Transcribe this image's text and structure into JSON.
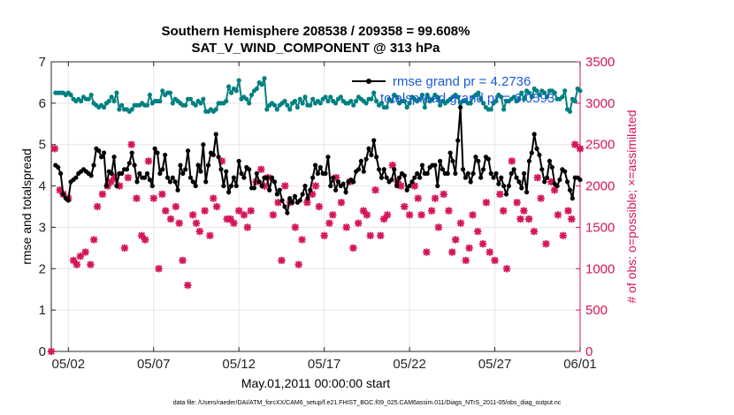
{
  "chart_data": {
    "type": "line",
    "title": "Southern Hemisphere 208538 / 209358 = 99.608%",
    "subtitle": "SAT_V_WIND_COMPONENT @ 313 hPa",
    "xlabel": "May.01,2011 00:00:00 start",
    "ylabel_left": "rmse and totalspread",
    "ylabel_right": "# of obs: o=possible; ×=assimilated",
    "footnote": "data file: /Users/raeder/DAI/ATM_forcXX/CAM6_setup/f.e21.FHIST_BGC.f09_025.CAM6assim.011/Diags_NTrS_2011-05/obs_diag_output.nc",
    "x_tick_labels": [
      "05/02",
      "05/07",
      "05/12",
      "05/17",
      "05/22",
      "05/27",
      "06/01"
    ],
    "x_tick_values": [
      2,
      7,
      12,
      17,
      22,
      27,
      32
    ],
    "xlim": [
      1,
      32
    ],
    "ylim_left": [
      0,
      7
    ],
    "y_ticks_left": [
      "0",
      "1",
      "2",
      "3",
      "4",
      "5",
      "6",
      "7"
    ],
    "ylim_right": [
      0,
      3500
    ],
    "y_ticks_right": [
      "0",
      "500",
      "1000",
      "1500",
      "2000",
      "2500",
      "3000",
      "3500"
    ],
    "grid": true,
    "legend_position": "top-right",
    "colors": {
      "rmse": "#000000",
      "spread": "#008080",
      "obs": "#d6145a"
    },
    "series": [
      {
        "name": "rmse grand pr = 4.2736",
        "axis": "left",
        "style": "line-dots",
        "values": [
          4.5,
          4.45,
          4.3,
          3.8,
          3.7,
          3.65,
          4.1,
          4.15,
          4.2,
          4.3,
          4.35,
          4.4,
          4.35,
          4.3,
          4.25,
          4.5,
          4.9,
          4.85,
          4.7,
          4.8,
          4.0,
          4.35,
          4.3,
          4.7,
          4.0,
          4.3,
          4.3,
          4.4,
          4.4,
          4.55,
          4.8,
          4.5,
          4.1,
          4.3,
          4.2,
          4.2,
          4.3,
          4.15,
          4.0,
          4.9,
          4.8,
          4.3,
          4.4,
          4.75,
          4.2,
          4.1,
          4.2,
          4.1,
          3.9,
          4.5,
          4.3,
          4.4,
          4.85,
          4.2,
          4.1,
          4.0,
          4.5,
          4.35,
          5.0,
          4.1,
          4.5,
          4.8,
          4.75,
          5.25,
          4.7,
          4.4,
          4.0,
          4.35,
          3.85,
          4.0,
          4.2,
          4.0,
          4.6,
          4.3,
          4.2,
          4.45,
          4.4,
          3.95,
          3.95,
          4.3,
          4.1,
          4.0,
          4.2,
          4.2,
          3.9,
          4.2,
          4.1,
          3.8,
          3.9,
          3.65,
          3.5,
          3.35,
          3.7,
          3.6,
          3.75,
          3.6,
          3.65,
          3.8,
          4.0,
          3.7,
          3.9,
          4.2,
          4.5,
          4.3,
          4.45,
          4.3,
          4.3,
          4.7,
          4.0,
          4.2,
          3.9,
          4.1,
          4.0,
          4.05,
          3.85,
          4.1,
          4.15,
          4.1,
          4.35,
          4.4,
          4.6,
          4.35,
          4.65,
          4.9,
          4.75,
          5.1,
          4.7,
          4.4,
          4.2,
          4.4,
          4.2,
          4.1,
          4.15,
          4.4,
          4.0,
          4.2,
          4.3,
          4.25,
          3.9,
          4.0,
          4.1,
          4.2,
          4.3,
          4.2,
          4.5,
          4.3,
          4.3,
          4.45,
          4.5,
          4.5,
          4.0,
          4.6,
          4.4,
          4.3,
          4.3,
          4.8,
          4.6,
          4.3,
          5.1,
          5.9,
          4.4,
          4.2,
          4.3,
          4.1,
          4.3,
          4.7,
          4.6,
          4.2,
          4.4,
          4.7,
          4.65,
          4.3,
          4.2,
          4.3,
          4.05,
          4.2,
          4.0,
          3.8,
          4.0,
          4.3,
          4.4,
          4.2,
          4.1,
          3.95,
          4.3,
          3.85,
          4.6,
          4.8,
          5.25,
          4.9,
          4.75,
          4.4,
          4.1,
          4.2,
          4.6,
          4.45,
          4.05,
          4.0,
          4.15,
          4.4,
          4.35,
          4.1,
          3.9,
          3.7,
          4.2,
          4.2,
          4.15
        ]
      },
      {
        "name": "totalspread grand pr = 6.0593",
        "axis": "left",
        "style": "line-dots",
        "values": [
          6.25,
          6.25,
          6.25,
          6.25,
          6.2,
          6.25,
          6.2,
          6.1,
          6.05,
          6.1,
          6.05,
          6.15,
          6.1,
          6.1,
          6.2,
          6.0,
          5.95,
          5.9,
          5.95,
          5.9,
          6.0,
          6.05,
          6.15,
          6.05,
          6.25,
          5.85,
          5.95,
          5.85,
          5.85,
          5.8,
          5.85,
          5.95,
          5.95,
          5.95,
          6.0,
          5.95,
          5.95,
          6.2,
          6.0,
          6.05,
          6.05,
          6.05,
          6.3,
          6.2,
          6.25,
          6.25,
          6.0,
          6.1,
          6.05,
          6.0,
          5.95,
          5.95,
          6.1,
          6.1,
          6.0,
          5.95,
          6.05,
          6.0,
          6.1,
          5.8,
          5.8,
          5.85,
          5.8,
          5.85,
          6.0,
          6.0,
          6.0,
          6.05,
          6.4,
          6.25,
          6.35,
          6.3,
          6.55,
          6.1,
          6.15,
          6.1,
          6.0,
          6.2,
          6.3,
          6.35,
          6.5,
          6.45,
          6.6,
          5.85,
          5.95,
          6.0,
          5.95,
          5.85,
          5.95,
          6.0,
          6.05,
          5.95,
          5.85,
          6.0,
          6.05,
          5.9,
          6.1,
          6.0,
          6.15,
          5.95,
          5.95,
          6.1,
          6.0,
          6.05,
          6.0,
          6.1,
          6.15,
          6.05,
          6.15,
          6.05,
          6.0,
          6.1,
          6.15,
          6.05,
          6.0,
          6.0,
          6.05,
          5.95,
          6.05,
          6.15,
          6.1,
          6.05,
          6.0,
          6.1,
          6.1,
          6.25,
          6.05,
          5.95,
          6.0,
          5.9,
          5.9,
          6.1,
          6.05,
          6.2,
          6.15,
          6.0,
          6.05,
          6.05,
          5.9,
          6.0,
          6.15,
          6.1,
          6.05,
          6.1,
          6.2,
          5.9,
          6.2,
          6.05,
          6.1,
          6.2,
          6.15,
          5.95,
          6.05,
          6.0,
          6.05,
          6.1,
          6.15,
          6.2,
          6.15,
          6.0,
          6.05,
          6.05,
          6.0,
          6.0,
          6.15,
          6.2,
          6.25,
          6.1,
          6.0,
          5.9,
          5.85,
          5.85,
          6.0,
          6.05,
          6.2,
          6.15,
          5.85,
          6.05,
          6.05,
          6.1,
          6.15,
          6.05,
          6.1,
          6.25,
          6.1,
          6.3,
          6.25,
          6.15,
          6.35,
          6.3,
          6.2,
          6.3,
          6.25,
          6.15,
          6.3,
          6.3,
          6.25,
          6.1,
          6.1,
          6.15,
          6.3,
          5.85,
          5.8,
          6.1,
          6.05,
          6.35,
          6.3
        ]
      },
      {
        "name": "obs assimilated",
        "axis": "right",
        "style": "markers",
        "x": [
          1.0,
          1.2,
          1.5,
          1.7,
          2.0,
          2.3,
          2.5,
          2.7,
          3.0,
          3.3,
          3.5,
          3.7,
          4.0,
          4.3,
          4.5,
          4.7,
          5.0,
          5.3,
          5.5,
          5.7,
          6.0,
          6.3,
          6.5,
          6.7,
          7.0,
          7.3,
          7.5,
          7.7,
          8.0,
          8.3,
          8.5,
          8.7,
          9.0,
          9.3,
          9.5,
          9.7,
          10.0,
          10.3,
          10.5,
          10.7,
          11.0,
          11.3,
          11.5,
          11.7,
          12.0,
          12.3,
          12.5,
          12.7,
          13.0,
          13.3,
          13.5,
          13.7,
          14.0,
          14.3,
          14.5,
          14.7,
          15.0,
          15.3,
          15.5,
          15.7,
          16.0,
          16.3,
          16.5,
          16.7,
          17.0,
          17.3,
          17.5,
          17.7,
          18.0,
          18.3,
          18.5,
          18.7,
          19.0,
          19.3,
          19.5,
          19.7,
          20.0,
          20.3,
          20.5,
          20.7,
          21.0,
          21.3,
          21.5,
          21.7,
          22.0,
          22.3,
          22.5,
          22.7,
          23.0,
          23.3,
          23.5,
          23.7,
          24.0,
          24.3,
          24.5,
          24.7,
          25.0,
          25.3,
          25.5,
          25.7,
          26.0,
          26.3,
          26.5,
          26.7,
          27.0,
          27.3,
          27.5,
          27.7,
          28.0,
          28.3,
          28.5,
          28.7,
          29.0,
          29.3,
          29.5,
          29.7,
          30.0,
          30.3,
          30.5,
          30.7,
          31.0,
          31.3,
          31.5,
          31.7,
          32.0
        ],
        "values": [
          0,
          2450,
          1950,
          1900,
          1850,
          1100,
          1050,
          1150,
          1200,
          1050,
          1350,
          1750,
          1900,
          2000,
          2050,
          2100,
          2000,
          1250,
          2100,
          2500,
          1850,
          1400,
          1350,
          2300,
          1850,
          1000,
          1900,
          1700,
          1600,
          1750,
          1550,
          1100,
          800,
          1650,
          1550,
          1450,
          1700,
          1400,
          1850,
          1750,
          2300,
          1600,
          1600,
          1550,
          1700,
          1650,
          1500,
          1700,
          2050,
          2200,
          2000,
          2100,
          1650,
          1800,
          1100,
          2000,
          1800,
          1500,
          1050,
          1350,
          1800,
          1900,
          2000,
          1750,
          1400,
          1550,
          1650,
          2100,
          1800,
          1500,
          2050,
          1250,
          1550,
          1700,
          1650,
          1400,
          1950,
          1400,
          1600,
          1650,
          2250,
          2050,
          2000,
          1750,
          1650,
          2000,
          1850,
          1650,
          1200,
          1700,
          1850,
          1500,
          1900,
          1700,
          1200,
          1350,
          1550,
          1100,
          1250,
          1650,
          1450,
          1300,
          1800,
          1200,
          1100,
          1900,
          1700,
          1000,
          2300,
          1800,
          1600,
          1700,
          1600,
          1450,
          2100,
          1850,
          1300,
          2050,
          1950,
          1650,
          1400,
          1700,
          1600,
          2500,
          2450
        ]
      }
    ]
  }
}
